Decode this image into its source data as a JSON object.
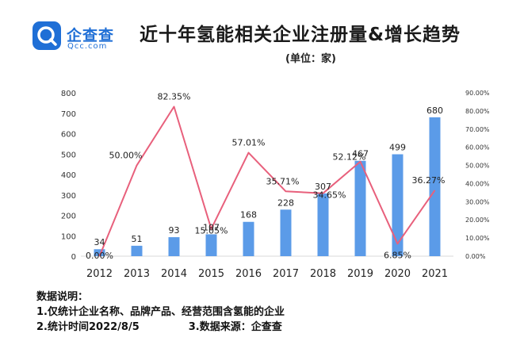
{
  "logo": {
    "name": "企查查",
    "sub": "Qcc.com"
  },
  "title": "近十年氢能相关企业注册量&增长趋势",
  "unit_note": "(单位：家)",
  "chart_data": {
    "type": "bar",
    "categories": [
      "2012",
      "2013",
      "2014",
      "2015",
      "2016",
      "2017",
      "2018",
      "2019",
      "2020",
      "2021"
    ],
    "series": [
      {
        "values": [
          34,
          51,
          93,
          107,
          168,
          228,
          307,
          467,
          499,
          680
        ],
        "color": "#5b9be8"
      },
      {
        "type": "line",
        "axis": "right",
        "values": [
          0.0,
          50.0,
          82.35,
          15.05,
          57.01,
          35.71,
          34.65,
          52.12,
          6.85,
          36.27
        ],
        "color": "#e8607c"
      }
    ],
    "left_ticks": [
      "0",
      "100",
      "200",
      "300",
      "400",
      "500",
      "600",
      "700",
      "800"
    ],
    "left_ylim": [
      0,
      800
    ],
    "right_ticks": [
      "0.00%",
      "10.00%",
      "20.00%",
      "30.00%",
      "40.00%",
      "50.00%",
      "60.00%",
      "70.00%",
      "80.00%",
      "90.00%"
    ],
    "right_ylim": [
      0,
      90
    ],
    "bar_labels": [
      "34",
      "51",
      "93",
      "107",
      "168",
      "228",
      "307",
      "467",
      "499",
      "680"
    ],
    "pct_labels": [
      "0.00%",
      "50.00%",
      "82.35%",
      "15.05%",
      "57.01%",
      "35.71%",
      "34.65%",
      "52.12%",
      "6.85%",
      "36.27%"
    ],
    "grid": false
  },
  "notes": {
    "heading": "数据说明：",
    "line1": "1.仅统计企业名称、品牌产品、经营范围含氢能的企业",
    "line2a": "2.统计时间2022/8/5",
    "line2b": "3.数据来源：企查查"
  }
}
